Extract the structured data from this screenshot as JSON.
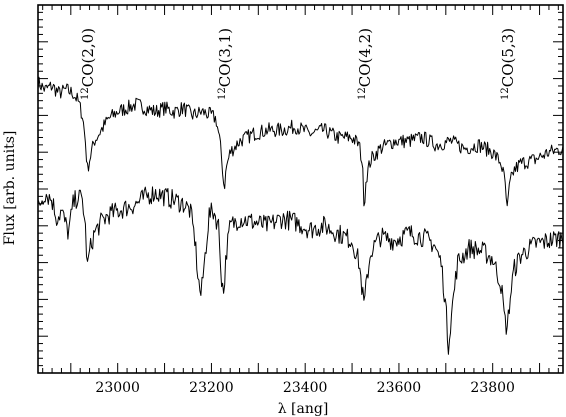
{
  "chart_data": {
    "type": "line",
    "title": "",
    "xlabel": "λ [ang]",
    "ylabel": "Flux [arb. units]",
    "xlim": [
      22830,
      23950
    ],
    "ylim": [
      0,
      1
    ],
    "x_ticks": [
      23000,
      23200,
      23400,
      23600,
      23800
    ],
    "x_tick_labels": [
      "23000",
      "23200",
      "23400",
      "23600",
      "23800"
    ],
    "y_tick_labels_shown": false,
    "grid": false,
    "legend": "none",
    "annotations": [
      {
        "text": "12CO(2,0)",
        "sup": "12",
        "rest": "CO(2,0)",
        "x": 22935
      },
      {
        "text": "12CO(3,1)",
        "sup": "12",
        "rest": "CO(3,1)",
        "x": 23227
      },
      {
        "text": "12CO(4,2)",
        "sup": "12",
        "rest": "CO(4,2)",
        "x": 23525
      },
      {
        "text": "12CO(5,3)",
        "sup": "12",
        "rest": "CO(5,3)",
        "x": 23830
      }
    ],
    "series": [
      {
        "x": [
          22830,
          22845,
          22860,
          22875,
          22890,
          22905,
          22915,
          22925,
          22932,
          22935,
          22940,
          22950,
          22965,
          22980,
          23000,
          23020,
          23040,
          23060,
          23080,
          23100,
          23120,
          23140,
          23160,
          23180,
          23200,
          23210,
          23218,
          23224,
          23227,
          23232,
          23240,
          23260,
          23290,
          23320,
          23350,
          23380,
          23410,
          23440,
          23470,
          23500,
          23515,
          23522,
          23526,
          23530,
          23540,
          23560,
          23590,
          23620,
          23650,
          23680,
          23710,
          23740,
          23770,
          23800,
          23818,
          23826,
          23831,
          23836,
          23845,
          23860,
          23890,
          23920,
          23950
        ],
        "y": [
          0.79,
          0.77,
          0.78,
          0.76,
          0.77,
          0.76,
          0.74,
          0.7,
          0.62,
          0.55,
          0.58,
          0.63,
          0.66,
          0.69,
          0.71,
          0.72,
          0.73,
          0.72,
          0.71,
          0.72,
          0.71,
          0.72,
          0.7,
          0.71,
          0.7,
          0.69,
          0.63,
          0.55,
          0.5,
          0.56,
          0.6,
          0.63,
          0.65,
          0.66,
          0.66,
          0.67,
          0.65,
          0.66,
          0.64,
          0.64,
          0.62,
          0.57,
          0.45,
          0.53,
          0.58,
          0.61,
          0.63,
          0.63,
          0.64,
          0.62,
          0.63,
          0.61,
          0.62,
          0.6,
          0.57,
          0.52,
          0.44,
          0.51,
          0.55,
          0.57,
          0.58,
          0.6,
          0.61
        ]
      },
      {
        "x": [
          22830,
          22845,
          22860,
          22870,
          22880,
          22895,
          22905,
          22915,
          22925,
          22932,
          22935,
          22940,
          22950,
          22965,
          22980,
          23000,
          23020,
          23040,
          23060,
          23080,
          23100,
          23120,
          23140,
          23155,
          23165,
          23172,
          23178,
          23185,
          23195,
          23205,
          23215,
          23222,
          23226,
          23232,
          23240,
          23260,
          23290,
          23320,
          23350,
          23380,
          23410,
          23440,
          23470,
          23500,
          23515,
          23522,
          23526,
          23532,
          23540,
          23560,
          23590,
          23620,
          23650,
          23675,
          23690,
          23700,
          23705,
          23712,
          23725,
          23750,
          23780,
          23800,
          23818,
          23826,
          23831,
          23836,
          23845,
          23860,
          23890,
          23920,
          23950
        ],
        "y": [
          0.45,
          0.49,
          0.47,
          0.42,
          0.44,
          0.38,
          0.46,
          0.48,
          0.47,
          0.38,
          0.28,
          0.33,
          0.38,
          0.41,
          0.43,
          0.44,
          0.45,
          0.46,
          0.48,
          0.49,
          0.48,
          0.47,
          0.46,
          0.44,
          0.36,
          0.25,
          0.21,
          0.3,
          0.43,
          0.44,
          0.4,
          0.25,
          0.22,
          0.33,
          0.4,
          0.42,
          0.41,
          0.4,
          0.42,
          0.41,
          0.39,
          0.4,
          0.38,
          0.36,
          0.3,
          0.22,
          0.18,
          0.26,
          0.33,
          0.37,
          0.36,
          0.38,
          0.37,
          0.35,
          0.3,
          0.18,
          0.07,
          0.16,
          0.3,
          0.34,
          0.33,
          0.31,
          0.24,
          0.14,
          0.12,
          0.19,
          0.28,
          0.32,
          0.35,
          0.36,
          0.37
        ]
      }
    ]
  }
}
